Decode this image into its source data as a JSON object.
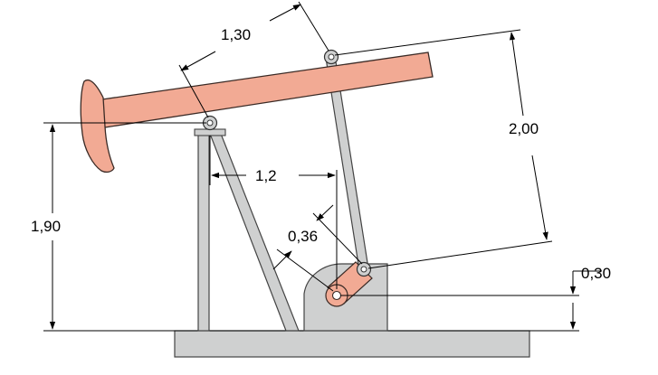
{
  "labels": {
    "beam_front_length": "1,30",
    "pitman_length": "2,00",
    "horizontal_offset": "1,2",
    "pivot_height": "1,90",
    "crank_radius": "0,36",
    "crank_height": "0,30"
  },
  "colors": {
    "beam_fill": "#f2aa94",
    "beam_stroke": "#3a2a25",
    "crank_fill": "#f2aa94",
    "steel_fill": "#cfd0d0",
    "steel_stroke": "#444444",
    "dimension_line": "#000000"
  }
}
